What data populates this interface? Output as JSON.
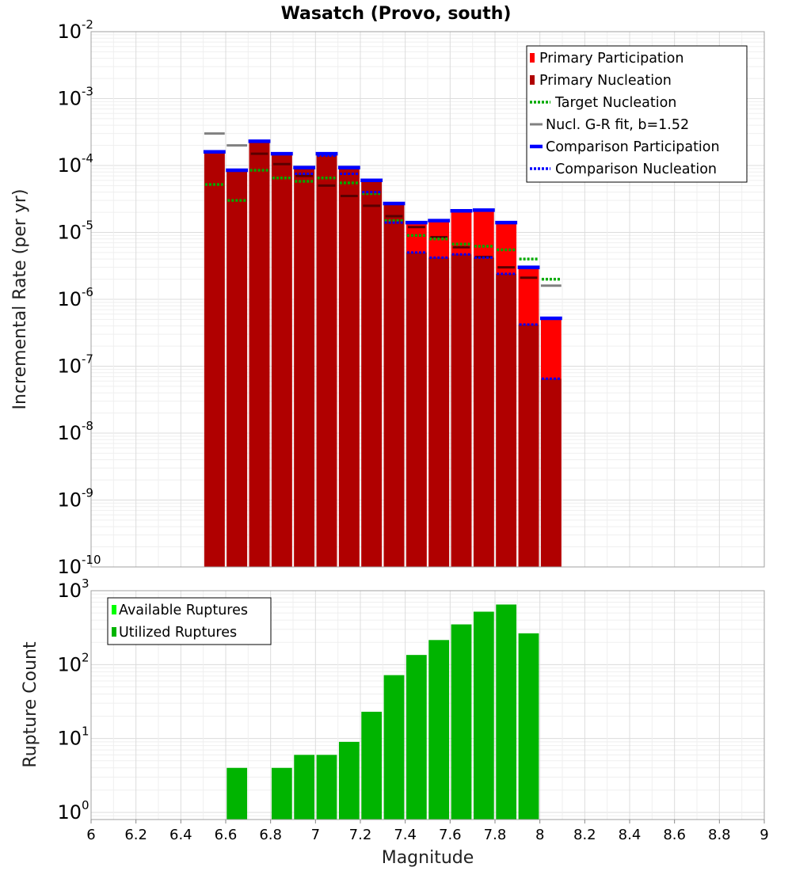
{
  "chart_data": [
    {
      "type": "bar",
      "title": "Wasatch (Provo, south)",
      "ylabel": "Incremental Rate (per yr)",
      "xlabel": "",
      "yscale": "log",
      "ylim": [
        1e-10,
        0.01
      ],
      "xlim": [
        6,
        9
      ],
      "grid": true,
      "legend_position": "top-right",
      "colors": {
        "primary_participation": "#ff0000",
        "primary_nucleation": "#b00000",
        "target_nucleation": "#00aa00",
        "gr_fit": "#808080",
        "comparison_participation": "#0000ff",
        "comparison_nucleation": "#0000ff",
        "nucleation_tick": "#5a0000"
      },
      "legend": [
        {
          "key": "primary_participation",
          "label": "Primary Participation",
          "style": "box"
        },
        {
          "key": "primary_nucleation",
          "label": "Primary Nucleation",
          "style": "box"
        },
        {
          "key": "target_nucleation",
          "label": "Target Nucleation",
          "style": "dotted"
        },
        {
          "key": "gr_fit",
          "label": "Nucl. G-R fit, b=1.52",
          "style": "solid"
        },
        {
          "key": "comparison_participation",
          "label": "Comparison Participation",
          "style": "thick"
        },
        {
          "key": "comparison_nucleation",
          "label": "Comparison Nucleation",
          "style": "dotted"
        }
      ],
      "x": [
        6.55,
        6.65,
        6.75,
        6.85,
        6.95,
        7.05,
        7.15,
        7.25,
        7.35,
        7.45,
        7.55,
        7.65,
        7.75,
        7.85,
        7.95,
        8.05
      ],
      "series": [
        {
          "key": "primary_participation",
          "name": "Primary Participation",
          "values": [
            0.00016,
            8.5e-05,
            0.00023,
            0.00015,
            9.3e-05,
            0.00015,
            9.3e-05,
            6e-05,
            2.7e-05,
            1.4e-05,
            1.5e-05,
            2.1e-05,
            2.15e-05,
            1.4e-05,
            3e-06,
            5.2e-07
          ]
        },
        {
          "key": "primary_nucleation",
          "name": "Primary Nucleation",
          "values": [
            0.00016,
            8.5e-05,
            0.00023,
            0.00015,
            9.3e-05,
            0.00015,
            9.3e-05,
            6e-05,
            2.7e-05,
            5e-06,
            4.2e-06,
            4.7e-06,
            4.2e-06,
            2.4e-06,
            4.2e-07,
            6.5e-08
          ]
        },
        {
          "key": "primary_nucleation_marker",
          "values": [
            null,
            null,
            0.00015,
            0.000105,
            7e-05,
            5e-05,
            3.5e-05,
            2.5e-05,
            1.75e-05,
            1.2e-05,
            8.5e-06,
            6e-06,
            4.3e-06,
            3e-06,
            2.1e-06,
            null
          ]
        },
        {
          "key": "target_nucleation",
          "name": "Target Nucleation",
          "values": [
            5.2e-05,
            3e-05,
            8.5e-05,
            6.5e-05,
            5.8e-05,
            6.5e-05,
            5.5e-05,
            3.8e-05,
            1.5e-05,
            9e-06,
            8e-06,
            6.7e-06,
            6.2e-06,
            5.5e-06,
            4e-06,
            2e-06
          ]
        },
        {
          "key": "gr_fit",
          "name": "Nucl. G-R fit, b=1.52",
          "values": [
            0.0003,
            0.0002,
            null,
            null,
            null,
            null,
            null,
            null,
            null,
            null,
            null,
            null,
            null,
            null,
            null,
            1.6e-06
          ]
        },
        {
          "key": "comparison_participation",
          "name": "Comparison Participation",
          "values": [
            0.00016,
            8.5e-05,
            0.00023,
            0.00015,
            9.3e-05,
            0.00015,
            9.3e-05,
            6e-05,
            2.7e-05,
            1.4e-05,
            1.5e-05,
            2.1e-05,
            2.15e-05,
            1.4e-05,
            3e-06,
            5.2e-07
          ]
        },
        {
          "key": "comparison_nucleation",
          "name": "Comparison Nucleation",
          "values": [
            0.00016,
            8.5e-05,
            0.00023,
            0.00015,
            7.5e-05,
            0.00014,
            7.5e-05,
            4e-05,
            1.4e-05,
            5e-06,
            4.2e-06,
            4.7e-06,
            4.2e-06,
            2.4e-06,
            4.2e-07,
            6.5e-08
          ]
        }
      ],
      "yticks": [
        {
          "base": "10",
          "exp": "-10",
          "value": 1e-10
        },
        {
          "base": "10",
          "exp": "-9",
          "value": 1e-09
        },
        {
          "base": "10",
          "exp": "-8",
          "value": 1e-08
        },
        {
          "base": "10",
          "exp": "-7",
          "value": 1e-07
        },
        {
          "base": "10",
          "exp": "-6",
          "value": 1e-06
        },
        {
          "base": "10",
          "exp": "-5",
          "value": 1e-05
        },
        {
          "base": "10",
          "exp": "-4",
          "value": 0.0001
        },
        {
          "base": "10",
          "exp": "-3",
          "value": 0.001
        },
        {
          "base": "10",
          "exp": "-2",
          "value": 0.01
        }
      ]
    },
    {
      "type": "bar",
      "title": "",
      "ylabel": "Rupture Count",
      "xlabel": "Magnitude",
      "yscale": "log",
      "ylim": [
        0.8,
        1000
      ],
      "xlim": [
        6,
        9
      ],
      "grid": true,
      "legend_position": "top-left",
      "colors": {
        "available": "#00ff00",
        "utilized": "#00b400"
      },
      "legend": [
        {
          "key": "available",
          "label": "Available Ruptures",
          "style": "box"
        },
        {
          "key": "utilized",
          "label": "Utilized Ruptures",
          "style": "box"
        }
      ],
      "x": [
        6.65,
        6.85,
        6.95,
        7.05,
        7.15,
        7.25,
        7.35,
        7.45,
        7.55,
        7.65,
        7.75,
        7.85,
        7.95
      ],
      "series": [
        {
          "key": "utilized",
          "name": "Utilized Ruptures",
          "values": [
            4,
            4,
            6,
            6,
            9,
            23,
            72,
            135,
            215,
            350,
            520,
            650,
            265
          ]
        }
      ],
      "xticks": [
        "6",
        "6.2",
        "6.4",
        "6.6",
        "6.8",
        "7",
        "7.2",
        "7.4",
        "7.6",
        "7.8",
        "8",
        "8.2",
        "8.4",
        "8.6",
        "8.8",
        "9"
      ],
      "yticks": [
        {
          "base": "10",
          "exp": "0",
          "value": 1
        },
        {
          "base": "10",
          "exp": "1",
          "value": 10
        },
        {
          "base": "10",
          "exp": "2",
          "value": 100
        },
        {
          "base": "10",
          "exp": "3",
          "value": 1000
        }
      ]
    }
  ]
}
